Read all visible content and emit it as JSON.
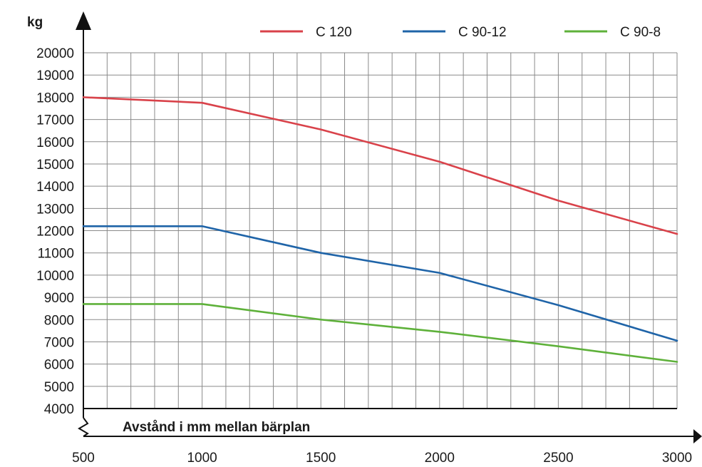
{
  "chart_data": {
    "type": "line",
    "ylabel": "kg",
    "xlabel": "Avstånd i mm mellan bärplan",
    "xlim": [
      500,
      3000
    ],
    "ylim": [
      4000,
      20000
    ],
    "x_ticks": [
      "500",
      "1000",
      "1500",
      "2000",
      "2500",
      "3000"
    ],
    "y_ticks": [
      "4000",
      "5000",
      "6000",
      "7000",
      "8000",
      "9000",
      "10000",
      "11000",
      "12000",
      "13000",
      "14000",
      "15000",
      "16000",
      "17000",
      "18000",
      "19000",
      "20000"
    ],
    "grid": true,
    "legend_position": "top",
    "x": [
      500,
      1000,
      1500,
      2000,
      2500,
      3000
    ],
    "series": [
      {
        "name": "C 120",
        "color": "#d9424a",
        "values": [
          18000,
          17750,
          16550,
          15100,
          13350,
          11850
        ]
      },
      {
        "name": "C 90-12",
        "color": "#1f64a8",
        "values": [
          12200,
          12200,
          11000,
          10100,
          8650,
          7050
        ]
      },
      {
        "name": "C 90-8",
        "color": "#5eb13a",
        "values": [
          8700,
          8700,
          8000,
          7450,
          6800,
          6100
        ]
      }
    ]
  }
}
